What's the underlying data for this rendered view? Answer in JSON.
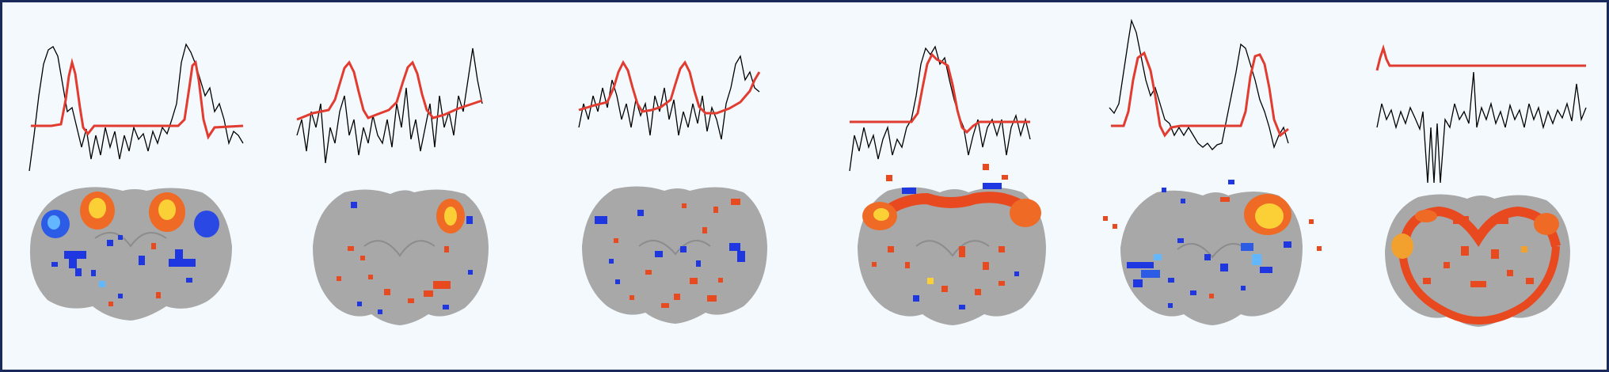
{
  "figure": {
    "frame_color": "#1a2a5a",
    "background": "#f3f9fd",
    "colors": {
      "model_timecourse": "#e13c2f",
      "measured_timecourse": "#000000",
      "brain_tissue": "#a8a8a8",
      "positive_activation": "#e8491f",
      "positive_activation_strong": "#fbd036",
      "negative_activation": "#1f37e0",
      "negative_activation_light": "#5aa0ff"
    },
    "panels": [
      {
        "id": 1,
        "model_shape": "two-peak-block",
        "map": "bilateral-orange-dorsal-blue-lateral"
      },
      {
        "id": 2,
        "model_shape": "sinusoid",
        "map": "right-dorsal-orange-focal"
      },
      {
        "id": 3,
        "model_shape": "sinusoid",
        "map": "scattered-mixed"
      },
      {
        "id": 4,
        "model_shape": "single-block",
        "map": "cortical-orange-ring"
      },
      {
        "id": 5,
        "model_shape": "two-peak-block",
        "map": "right-dorsal-yellow-with-blue-ventral"
      },
      {
        "id": 6,
        "model_shape": "onset-step",
        "map": "widespread-orange-cortex"
      }
    ]
  }
}
